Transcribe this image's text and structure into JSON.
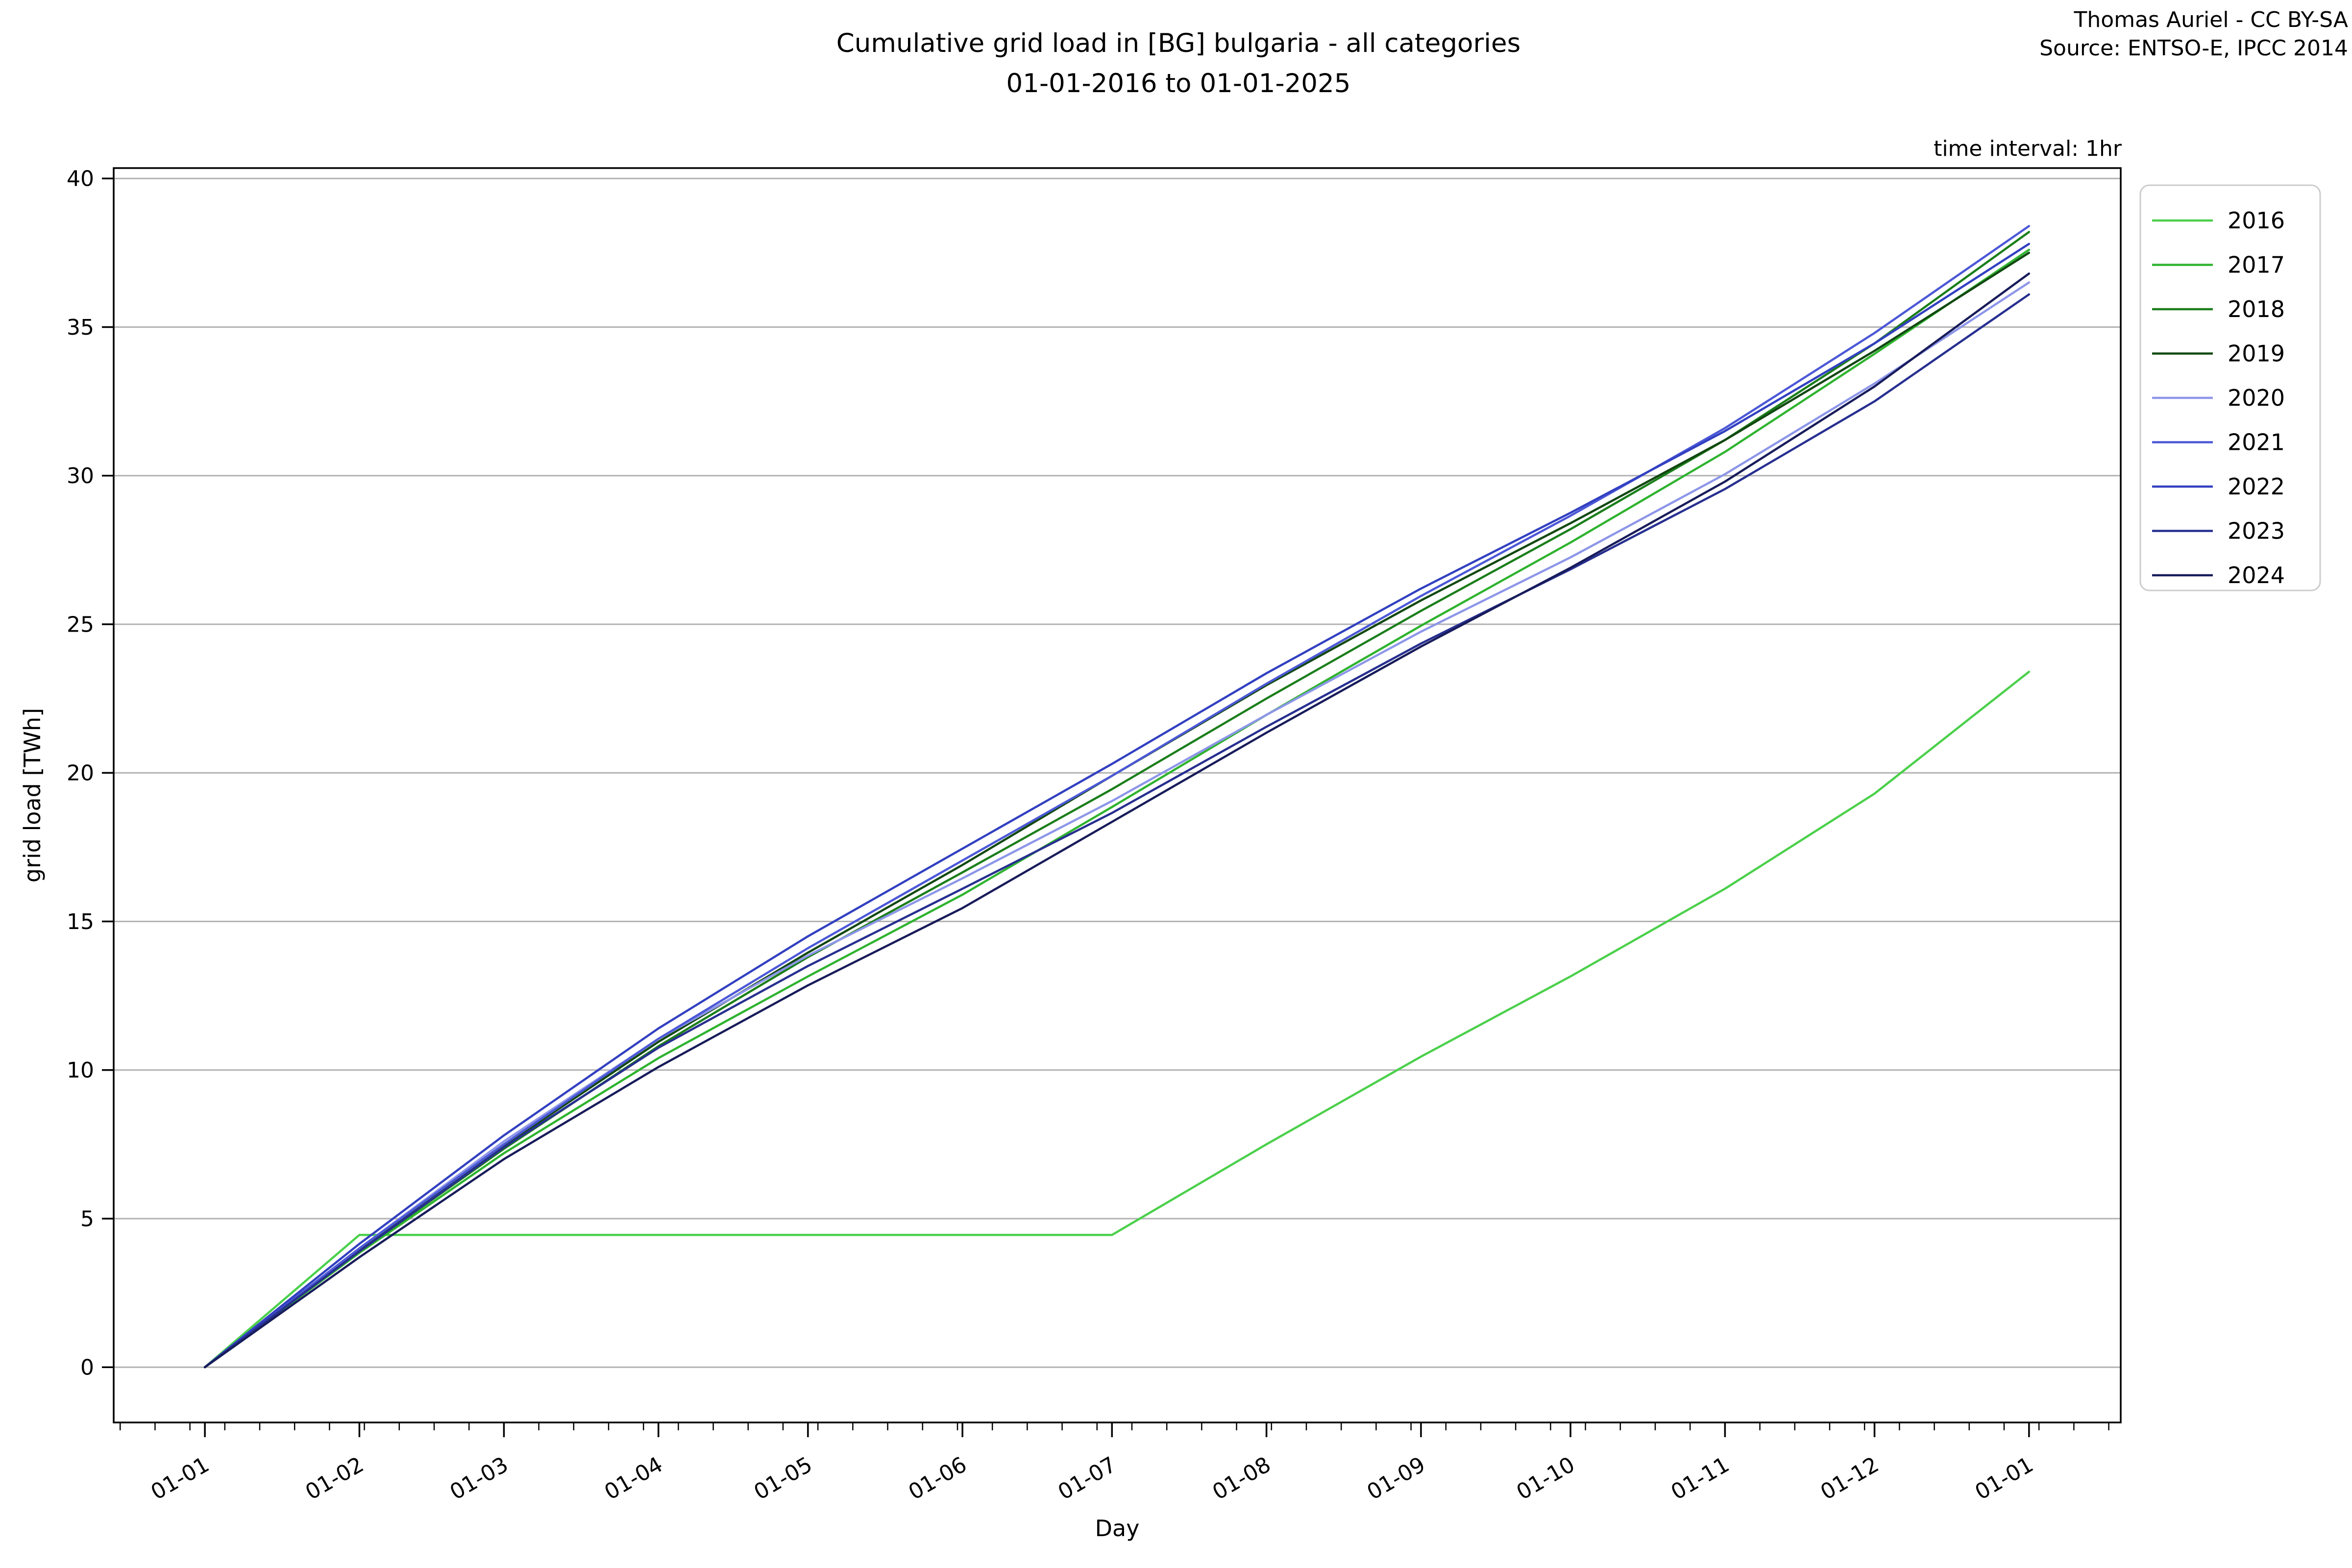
{
  "title": {
    "line1": "Cumulative grid load in [BG] bulgaria - all categories",
    "line2": "01-01-2016 to 01-01-2025"
  },
  "attribution": {
    "line1": "Thomas Auriel - CC BY-SA",
    "line2": "Source: ENTSO-E, IPCC 2014"
  },
  "annotation": {
    "text": "time interval: 1hr"
  },
  "chart_data": {
    "type": "line",
    "title": "Cumulative grid load in [BG] bulgaria - all categories 01-01-2016 to 01-01-2025",
    "xlabel": "Day",
    "ylabel": "grid load [TWh]",
    "x_axis_kind": "day of year, 01-01 through next 01-01",
    "xlim_days": [
      -18.3,
      384.4
    ],
    "ylim": [
      -1.86,
      40.35
    ],
    "y_ticks": [
      0,
      5,
      10,
      15,
      20,
      25,
      30,
      35,
      40
    ],
    "x_tick_labels": [
      "01-01",
      "01-02",
      "01-03",
      "01-04",
      "01-05",
      "01-06",
      "01-07",
      "01-08",
      "01-09",
      "01-10",
      "01-11",
      "01-12",
      "01-01"
    ],
    "x_month_days": [
      0,
      31,
      60,
      91,
      121,
      152,
      182,
      213,
      244,
      274,
      305,
      335,
      366
    ],
    "minor_tick_start_day": -17,
    "minor_tick_step_days": 7,
    "grid": "horizontal gridlines only",
    "grid_color": "#b2b2b2",
    "legend_position": "outside upper right",
    "legend_title": "",
    "series": [
      {
        "name": "2016",
        "color": "#4bd04b",
        "x_days": [
          0,
          31,
          182,
          213,
          244,
          274,
          305,
          335,
          366
        ],
        "values": [
          0,
          4.45,
          4.45,
          7.5,
          10.45,
          13.15,
          16.1,
          19.3,
          23.4
        ]
      },
      {
        "name": "2017",
        "color": "#2fb32f",
        "x_days": [
          0,
          31,
          60,
          91,
          121,
          152,
          182,
          213,
          244,
          274,
          305,
          335,
          366
        ],
        "values": [
          0,
          3.85,
          7.2,
          10.4,
          13.15,
          15.9,
          18.85,
          21.95,
          24.95,
          27.75,
          30.8,
          34.1,
          37.6
        ]
      },
      {
        "name": "2018",
        "color": "#1b7e1b",
        "x_days": [
          0,
          31,
          60,
          91,
          121,
          152,
          182,
          213,
          244,
          274,
          305,
          335,
          366
        ],
        "values": [
          0,
          3.9,
          7.35,
          10.8,
          13.8,
          16.65,
          19.45,
          22.5,
          25.45,
          28.2,
          31.2,
          34.45,
          38.2
        ]
      },
      {
        "name": "2019",
        "color": "#124812",
        "x_days": [
          0,
          31,
          60,
          91,
          121,
          152,
          182,
          213,
          244,
          274,
          305,
          335,
          366
        ],
        "values": [
          0,
          3.95,
          7.45,
          10.95,
          13.95,
          16.9,
          19.9,
          22.95,
          25.8,
          28.4,
          31.2,
          34.2,
          37.5
        ]
      },
      {
        "name": "2020",
        "color": "#8d96e8",
        "x_days": [
          0,
          31,
          60,
          91,
          121,
          152,
          182,
          213,
          244,
          274,
          305,
          335,
          366
        ],
        "values": [
          0,
          4.0,
          7.6,
          11.05,
          13.85,
          16.45,
          19.05,
          21.95,
          24.75,
          27.25,
          30.05,
          33.1,
          36.5
        ]
      },
      {
        "name": "2021",
        "color": "#4c58d6",
        "x_days": [
          0,
          31,
          60,
          91,
          121,
          152,
          182,
          213,
          244,
          274,
          305,
          335,
          366
        ],
        "values": [
          0,
          4.0,
          7.5,
          11.05,
          14.1,
          17.05,
          19.9,
          23.0,
          25.95,
          28.65,
          31.6,
          34.8,
          38.4
        ]
      },
      {
        "name": "2022",
        "color": "#3240c0",
        "x_days": [
          0,
          31,
          60,
          91,
          121,
          152,
          182,
          213,
          244,
          274,
          305,
          335,
          366
        ],
        "values": [
          0,
          4.15,
          7.8,
          11.4,
          14.5,
          17.45,
          20.3,
          23.35,
          26.2,
          28.75,
          31.5,
          34.45,
          37.8
        ]
      },
      {
        "name": "2023",
        "color": "#272f90",
        "x_days": [
          0,
          31,
          60,
          91,
          121,
          152,
          182,
          213,
          244,
          274,
          305,
          335,
          366
        ],
        "values": [
          0,
          3.9,
          7.4,
          10.75,
          13.5,
          16.1,
          18.65,
          21.55,
          24.35,
          26.85,
          29.55,
          32.5,
          36.1
        ]
      },
      {
        "name": "2024",
        "color": "#181c5a",
        "x_days": [
          0,
          31,
          60,
          91,
          121,
          152,
          182,
          213,
          244,
          274,
          305,
          335,
          366
        ],
        "values": [
          0,
          3.7,
          7.0,
          10.1,
          12.85,
          15.45,
          18.35,
          21.35,
          24.25,
          26.9,
          29.8,
          33.0,
          36.8
        ]
      }
    ]
  }
}
